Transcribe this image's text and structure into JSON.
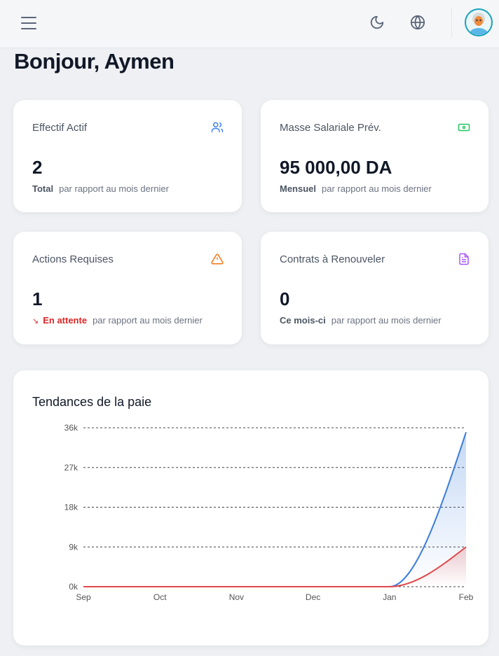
{
  "header": {
    "menu_icon": "hamburger-icon",
    "theme_icon": "moon-icon",
    "language_icon": "globe-icon",
    "avatar_icon": "user-avatar"
  },
  "greeting": "Bonjour, Aymen",
  "cards": [
    {
      "title": "Effectif Actif",
      "icon": "users-icon",
      "color": "#3b82f6",
      "value": "2",
      "label": "Total",
      "note": "par rapport au mois dernier"
    },
    {
      "title": "Masse Salariale Prév.",
      "icon": "banknote-icon",
      "color": "#22c55e",
      "value": "95 000,00 DA",
      "label": "Mensuel",
      "note": "par rapport au mois dernier"
    },
    {
      "title": "Actions Requises",
      "icon": "warning-icon",
      "color": "#f97316",
      "value": "1",
      "label": "En attente",
      "label_color": "#dc2626",
      "trend_icon": "arrow-down-right-icon",
      "note": "par rapport au mois dernier"
    },
    {
      "title": "Contrats à Renouveler",
      "icon": "file-text-icon",
      "color": "#a855f7",
      "value": "0",
      "label": "Ce mois-ci",
      "note": "par rapport au mois dernier"
    }
  ],
  "chart_title": "Tendances de la paie",
  "chart_data": {
    "type": "area",
    "title": "Tendances de la paie",
    "categories": [
      "Sep",
      "Oct",
      "Nov",
      "Dec",
      "Jan",
      "Feb"
    ],
    "y_ticks": [
      "0k",
      "9k",
      "18k",
      "27k",
      "36k"
    ],
    "ylim": [
      0,
      36000
    ],
    "grid": true,
    "series": [
      {
        "color": "#3b7ddd",
        "values": [
          0,
          0,
          0,
          0,
          0,
          35000
        ]
      },
      {
        "color": "#e04848",
        "values": [
          0,
          0,
          0,
          0,
          0,
          9000
        ]
      }
    ]
  }
}
